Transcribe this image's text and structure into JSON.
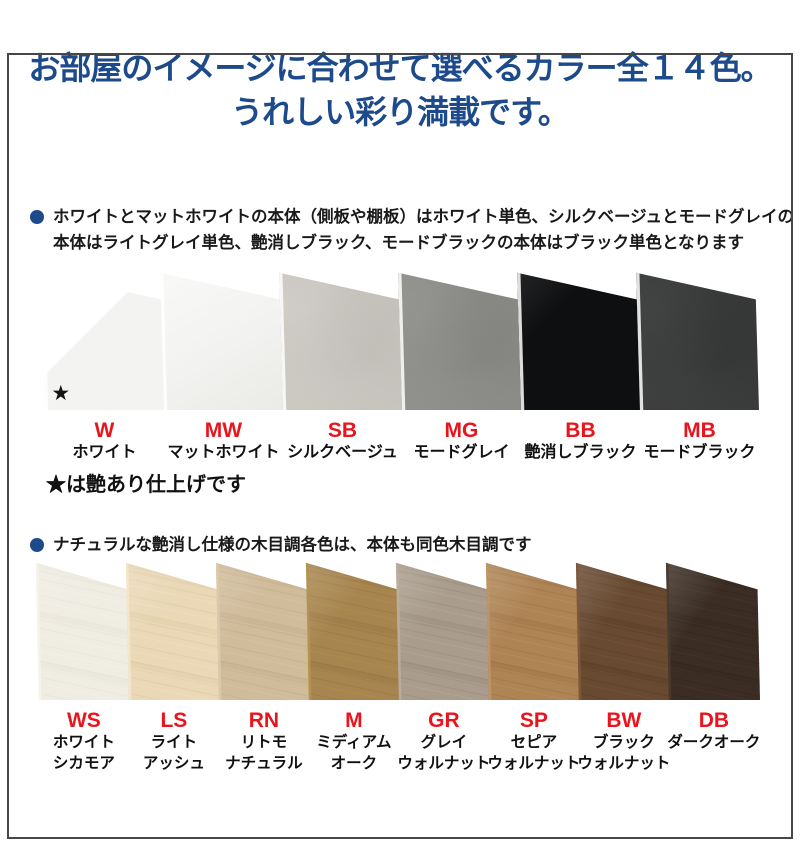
{
  "title": {
    "line1": "お部屋のイメージに合わせて選べるカラー全１４色。",
    "line2": "うれしい彩り満載です。",
    "color": "#1c4a8a"
  },
  "label_code_color": "#e8141e",
  "frame_color": "#474747",
  "sections": [
    {
      "id": "solid-colors",
      "note_lines": [
        "ホワイトとマットホワイトの本体（側板や棚板）はホワイト単色、シルクベージュとモードグレイの",
        "本体はライトグレイ単色、艶消しブラック、モードブラックの本体はブラック単色となります"
      ],
      "footnote": "★は艶あり仕上げです",
      "swatches": [
        {
          "code": "W",
          "name_lines": [
            "ホワイト"
          ],
          "texture": "gloss",
          "base": "#f3f3f1",
          "light": "#ffffff",
          "dark": "#e8e8e6",
          "star": "★"
        },
        {
          "code": "MW",
          "name_lines": [
            "マットホワイト"
          ],
          "texture": "matte",
          "base": "#f2f2f0",
          "light": "#f9f9f7",
          "dark": "#eaeae7"
        },
        {
          "code": "SB",
          "name_lines": [
            "シルクベージュ"
          ],
          "texture": "stone",
          "base": "#cac7c1",
          "light": "#dbd8d2",
          "dark": "#b4b1ab"
        },
        {
          "code": "MG",
          "name_lines": [
            "モードグレイ"
          ],
          "texture": "stone",
          "base": "#8e8f8b",
          "light": "#a0a19b",
          "dark": "#747571"
        },
        {
          "code": "BB",
          "name_lines": [
            "艶消しブラック"
          ],
          "texture": "solid",
          "base": "#0e0f10",
          "light": "#262728",
          "dark": "#000000"
        },
        {
          "code": "MB",
          "name_lines": [
            "モードブラック"
          ],
          "texture": "stone",
          "base": "#3c3d3d",
          "light": "#4d4e4e",
          "dark": "#2a2b2b"
        }
      ]
    },
    {
      "id": "wood-colors",
      "note_lines": [
        "ナチュラルな艶消し仕様の木目調各色は、本体も同色木目調です"
      ],
      "swatches": [
        {
          "code": "WS",
          "name_lines": [
            "ホワイト",
            "シカモア"
          ],
          "texture": "wood",
          "base": "#efece2",
          "light": "#f7f4eb",
          "dark": "#dfdbcc"
        },
        {
          "code": "LS",
          "name_lines": [
            "ライト",
            "アッシュ"
          ],
          "texture": "wood",
          "base": "#ead8b6",
          "light": "#f4e7ca",
          "dark": "#d6bf97"
        },
        {
          "code": "RN",
          "name_lines": [
            "リトモ",
            "ナチュラル"
          ],
          "texture": "wood",
          "base": "#d0bb9a",
          "light": "#ddcaac",
          "dark": "#baa280"
        },
        {
          "code": "M",
          "name_lines": [
            "ミディアム",
            "オーク"
          ],
          "texture": "wood",
          "base": "#a7854e",
          "light": "#b5934f",
          "dark": "#8c6c3c"
        },
        {
          "code": "GR",
          "name_lines": [
            "グレイ",
            "ウォルナット"
          ],
          "texture": "wood",
          "base": "#a99c8c",
          "light": "#bbae9e",
          "dark": "#8c7f6e"
        },
        {
          "code": "SP",
          "name_lines": [
            "セピア",
            "ウォルナット"
          ],
          "texture": "wood",
          "base": "#ae8455",
          "light": "#c09564",
          "dark": "#8f683e"
        },
        {
          "code": "BW",
          "name_lines": [
            "ブラック",
            "ウォルナット"
          ],
          "texture": "wood",
          "base": "#684a31",
          "light": "#7c593b",
          "dark": "#4f3621"
        },
        {
          "code": "DB",
          "name_lines": [
            "ダークオーク"
          ],
          "texture": "wood",
          "base": "#3b2d23",
          "light": "#4c3a2c",
          "dark": "#2a1f18"
        }
      ]
    }
  ]
}
